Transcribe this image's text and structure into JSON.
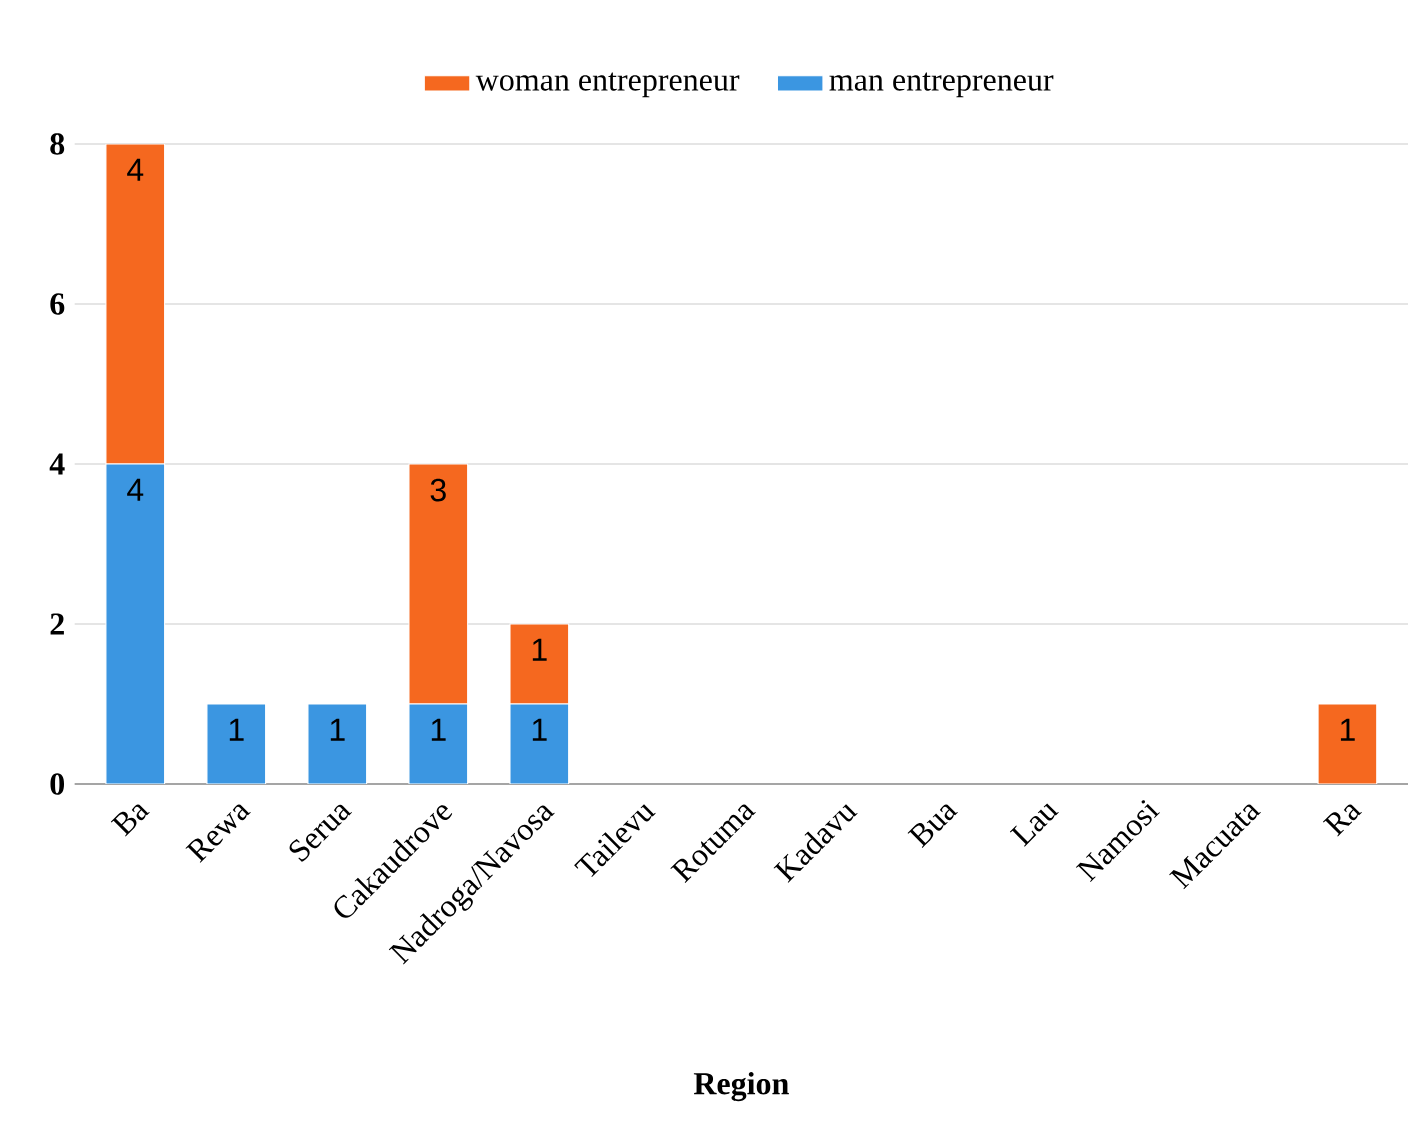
{
  "chart_data": {
    "type": "bar",
    "stacked": true,
    "xlabel": "Region",
    "categories": [
      "Ba",
      "Rewa",
      "Serua",
      "Cakaudrove",
      "Nadroga/Navosa",
      "Tailevu",
      "Rotuma",
      "Kadavu",
      "Bua",
      "Lau",
      "Namosi",
      "Macuata",
      "Ra"
    ],
    "ylim": [
      0,
      8
    ],
    "yticks": [
      0,
      2,
      4,
      6,
      8
    ],
    "grid": "y",
    "legend": "top",
    "series": [
      {
        "name": "man entrepreneur",
        "color": "#3b96e1",
        "values": [
          4,
          1,
          1,
          1,
          1,
          0,
          0,
          0,
          0,
          0,
          0,
          0,
          0
        ],
        "value_labels": [
          "4",
          "1",
          "1",
          "1",
          "1",
          null,
          null,
          null,
          null,
          null,
          null,
          null,
          null
        ]
      },
      {
        "name": "woman entrepreneur",
        "color": "#f5681f",
        "values": [
          4,
          0,
          0,
          3,
          1,
          0,
          0,
          0,
          0,
          0,
          0,
          0,
          1
        ],
        "value_labels": [
          "4",
          null,
          null,
          "3",
          "1",
          null,
          null,
          null,
          null,
          null,
          null,
          null,
          "1"
        ]
      }
    ]
  }
}
